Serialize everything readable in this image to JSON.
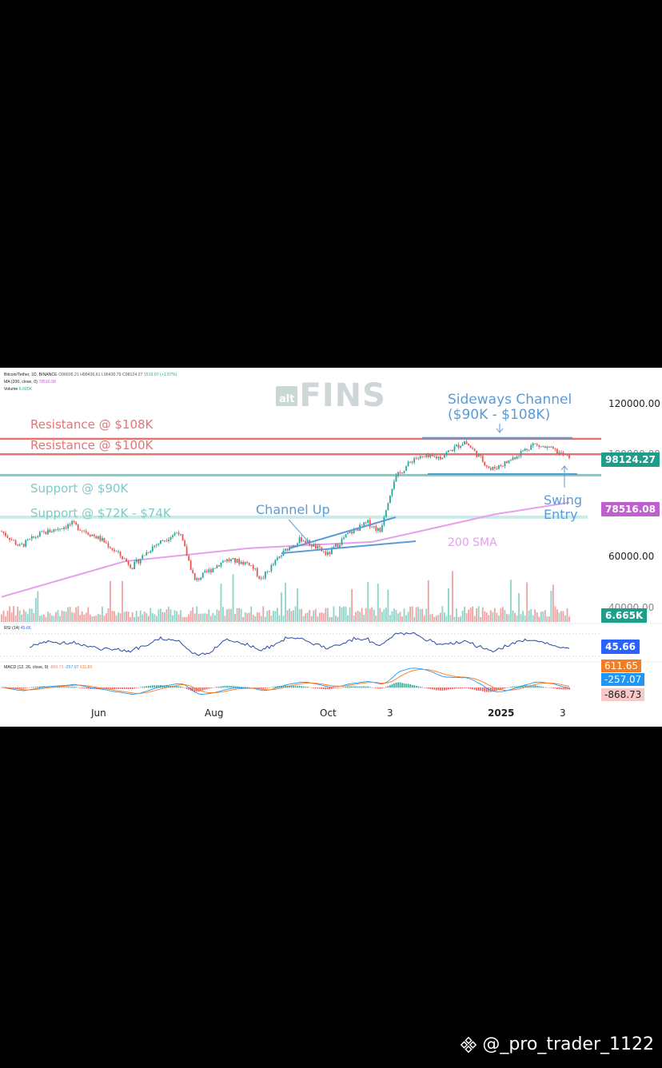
{
  "header": {
    "symbol": "Bitcoin/Tether, 1D, BINANCE",
    "open": "O96605.21",
    "high": "H98436.61",
    "low": "L96430.79",
    "close": "C98124.27",
    "change": "1519.07 (+1.57%)",
    "ma_label": "MA (200, close, 0)",
    "ma_value": "78516.08",
    "volume_label": "Volume",
    "volume_value": "6.665K"
  },
  "logo": {
    "alt": "alt",
    "fins": "FINS"
  },
  "annotations": {
    "resistance_108": "Resistance @ $108K",
    "resistance_100": "Resistance @ $100K",
    "support_90": "Support @ $90K",
    "support_72": "Support @ $72K - $74K",
    "channel_up": "Channel Up",
    "sma_200": "200 SMA",
    "sideways_line1": "Sideways Channel",
    "sideways_line2": "($90K - $108K)",
    "swing_line1": "Swing",
    "swing_line2": "Entry"
  },
  "price_tags": {
    "last_price": "98124.27",
    "ma200": "78516.08",
    "volume": "6.665K",
    "rsi": "45.66",
    "macd": "611.65",
    "signal": "-257.07",
    "hist": "-868.73"
  },
  "axis": {
    "y_ticks": [
      "120000.00",
      "100000.00",
      "60000.00",
      "40000.00"
    ],
    "x_ticks": [
      "Jun",
      "Aug",
      "Oct",
      "3",
      "2025",
      "3"
    ]
  },
  "rsi_panel": {
    "label": "RSI (14)",
    "value": "45.66"
  },
  "macd_panel": {
    "label": "MACD (12, 26, close, 9)",
    "v1": "-868.73",
    "v2": "-257.07",
    "v3": "611.65"
  },
  "watermark": "@_pro_trader_1122",
  "colors": {
    "up": "#26a69a",
    "down": "#ef5350",
    "resistance": "#e57373",
    "support": "#80cbc4",
    "channel": "#5b9bd5",
    "sma": "#e4a0e8"
  },
  "chart_data": {
    "type": "candlestick",
    "y_scale": "log",
    "ylim": [
      40000,
      125000
    ],
    "levels": [
      {
        "label": "Resistance @ $108K",
        "value": 108000
      },
      {
        "label": "Resistance @ $100K",
        "value": 100000
      },
      {
        "label": "Support @ $90K",
        "value": 90000
      },
      {
        "label": "Support @ $72K - $74K",
        "value": 73000
      }
    ],
    "last_close": 98124.27,
    "ma200_last": 78516.08,
    "price_path": [
      [
        "2024-05-01",
        68000
      ],
      [
        "2024-05-10",
        63000
      ],
      [
        "2024-05-20",
        67000
      ],
      [
        "2024-06-05",
        70500
      ],
      [
        "2024-06-20",
        65000
      ],
      [
        "2024-07-05",
        57000
      ],
      [
        "2024-07-15",
        63000
      ],
      [
        "2024-07-28",
        68000
      ],
      [
        "2024-08-05",
        53000
      ],
      [
        "2024-08-20",
        59000
      ],
      [
        "2024-09-01",
        58000
      ],
      [
        "2024-09-07",
        53500
      ],
      [
        "2024-09-20",
        62500
      ],
      [
        "2024-09-27",
        65500
      ],
      [
        "2024-10-10",
        60500
      ],
      [
        "2024-10-20",
        67000
      ],
      [
        "2024-10-30",
        71000
      ],
      [
        "2024-11-05",
        68000
      ],
      [
        "2024-11-12",
        88000
      ],
      [
        "2024-11-22",
        98000
      ],
      [
        "2024-12-05",
        98500
      ],
      [
        "2024-12-17",
        106500
      ],
      [
        "2024-12-30",
        92500
      ],
      [
        "2025-01-07",
        96000
      ],
      [
        "2025-01-20",
        105000
      ],
      [
        "2025-01-30",
        102000
      ],
      [
        "2025-02-07",
        98124.27
      ]
    ],
    "ma200_path": [
      [
        "2024-05-01",
        49000
      ],
      [
        "2024-07-01",
        58500
      ],
      [
        "2024-09-01",
        62500
      ],
      [
        "2024-10-01",
        63500
      ],
      [
        "2024-11-01",
        64500
      ],
      [
        "2024-12-01",
        69000
      ],
      [
        "2025-01-01",
        74000
      ],
      [
        "2025-02-07",
        78516.08
      ]
    ]
  }
}
